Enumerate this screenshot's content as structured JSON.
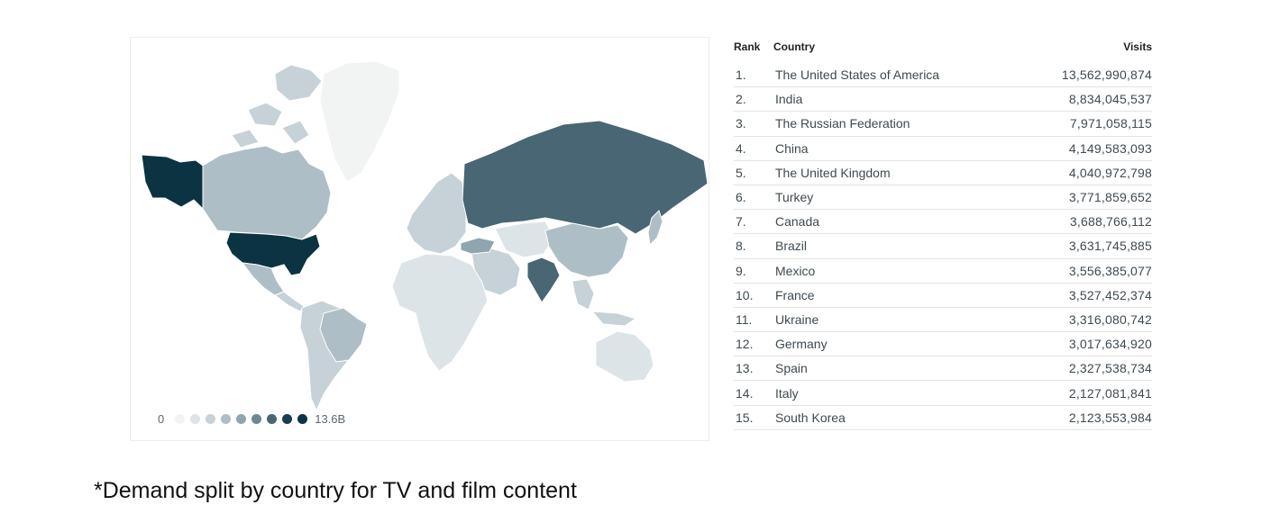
{
  "map": {
    "legend": {
      "min_label": "0",
      "max_label": "13.6B"
    },
    "scale_colors": [
      "#f2f3f3",
      "#dde4e7",
      "#c6d2d8",
      "#adbec6",
      "#8fa5b0",
      "#6d8793",
      "#486673",
      "#153e4e",
      "#0b3342"
    ],
    "regions": [
      {
        "name": "Alaska",
        "shade": 8
      },
      {
        "name": "United States",
        "shade": 8
      },
      {
        "name": "Canada",
        "shade": 3
      },
      {
        "name": "Canadian Arctic islands",
        "shade": 2
      },
      {
        "name": "Greenland",
        "shade": 0
      },
      {
        "name": "Mexico",
        "shade": 3
      },
      {
        "name": "Central America",
        "shade": 2
      },
      {
        "name": "South America",
        "shade": 2
      },
      {
        "name": "Brazil",
        "shade": 3
      },
      {
        "name": "Europe",
        "shade": 2
      },
      {
        "name": "Russian Federation",
        "shade": 6
      },
      {
        "name": "Africa",
        "shade": 1
      },
      {
        "name": "Middle East",
        "shade": 2
      },
      {
        "name": "Turkey",
        "shade": 4
      },
      {
        "name": "Central Asia",
        "shade": 1
      },
      {
        "name": "India",
        "shade": 6
      },
      {
        "name": "China",
        "shade": 3
      },
      {
        "name": "Southeast Asia",
        "shade": 2
      },
      {
        "name": "Japan",
        "shade": 3
      },
      {
        "name": "Australia",
        "shade": 1
      }
    ]
  },
  "table": {
    "headers": {
      "rank": "Rank",
      "country": "Country",
      "visits": "Visits"
    },
    "rows": [
      {
        "rank": "1.",
        "country": "The United States of America",
        "visits": "13,562,990,874"
      },
      {
        "rank": "2.",
        "country": "India",
        "visits": "8,834,045,537"
      },
      {
        "rank": "3.",
        "country": "The Russian Federation",
        "visits": "7,971,058,115"
      },
      {
        "rank": "4.",
        "country": "China",
        "visits": "4,149,583,093"
      },
      {
        "rank": "5.",
        "country": "The United Kingdom",
        "visits": "4,040,972,798"
      },
      {
        "rank": "6.",
        "country": "Turkey",
        "visits": "3,771,859,652"
      },
      {
        "rank": "7.",
        "country": "Canada",
        "visits": "3,688,766,112"
      },
      {
        "rank": "8.",
        "country": "Brazil",
        "visits": "3,631,745,885"
      },
      {
        "rank": "9.",
        "country": "Mexico",
        "visits": "3,556,385,077"
      },
      {
        "rank": "10.",
        "country": "France",
        "visits": "3,527,452,374"
      },
      {
        "rank": "11.",
        "country": "Ukraine",
        "visits": "3,316,080,742"
      },
      {
        "rank": "12.",
        "country": "Germany",
        "visits": "3,017,634,920"
      },
      {
        "rank": "13.",
        "country": "Spain",
        "visits": "2,327,538,734"
      },
      {
        "rank": "14.",
        "country": "Italy",
        "visits": "2,127,081,841"
      },
      {
        "rank": "15.",
        "country": "South Korea",
        "visits": "2,123,553,984"
      }
    ]
  },
  "footnote": "*Demand split by country for TV and film content"
}
